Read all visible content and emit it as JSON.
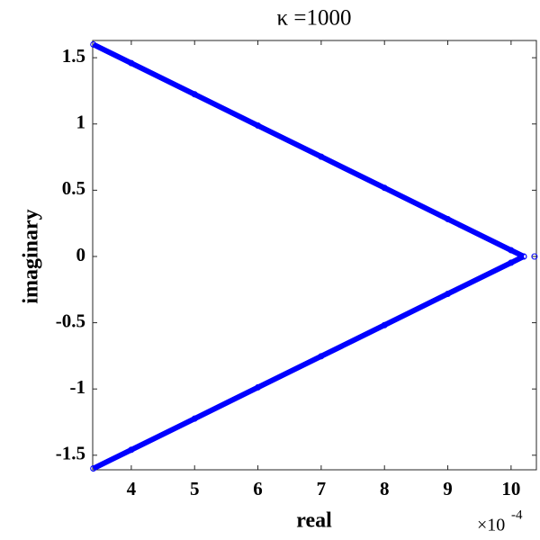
{
  "chart_data": {
    "type": "line",
    "title": "κ =1000",
    "x_label": "real",
    "y_label": "imaginary",
    "x_exponent_base": "×10",
    "x_exponent": -4,
    "xlim": [
      3.39,
      10.4
    ],
    "xticks": [
      4,
      5,
      6,
      7,
      8,
      9,
      10
    ],
    "ylim": [
      -1.61,
      1.63
    ],
    "yticks": [
      -1.5,
      -1,
      -0.5,
      0,
      0.5,
      1,
      1.5
    ],
    "grid": false,
    "series": [
      {
        "color": "#0000ff",
        "marker": "o",
        "line": true,
        "x": [
          3.4,
          4,
          5,
          6,
          7,
          8,
          9,
          10,
          10.2,
          null,
          10.2,
          10,
          9,
          8,
          7,
          6,
          5,
          4,
          3.4
        ],
        "values": [
          1.6,
          1.459,
          1.224,
          0.988,
          0.753,
          0.518,
          0.282,
          0.047,
          0,
          null,
          0,
          -0.047,
          -0.282,
          -0.518,
          -0.753,
          -0.988,
          -1.224,
          -1.459,
          -1.6
        ]
      },
      {
        "color": "#0000ff",
        "marker": "o",
        "line": false,
        "x": [
          10.37
        ],
        "values": [
          0
        ]
      }
    ]
  }
}
